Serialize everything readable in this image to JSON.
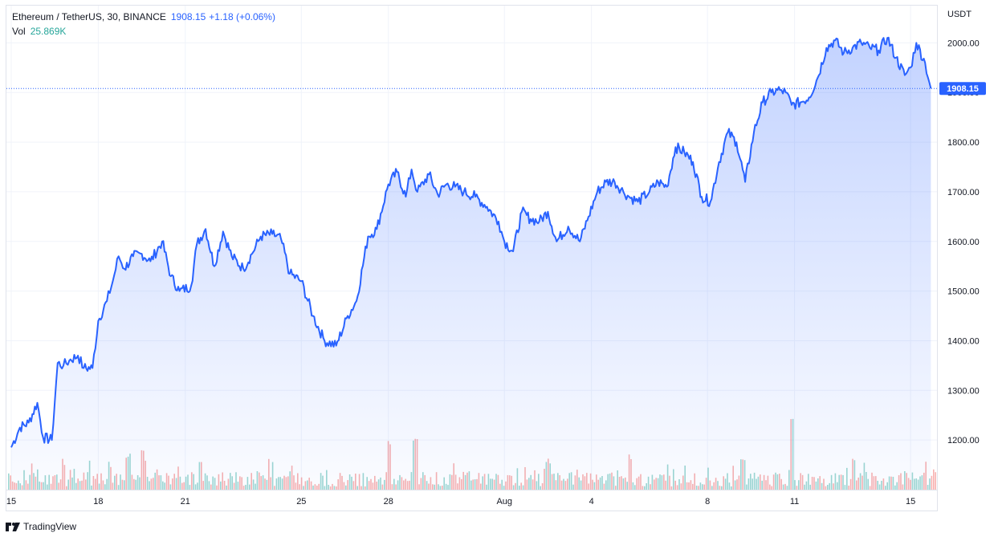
{
  "legend": {
    "symbol": "Ethereum / TetherUS, 30, BINANCE",
    "price": "1908.15",
    "change": "+1.18 (+0.06%)",
    "vol_label": "Vol",
    "vol_value": "25.869K"
  },
  "currency": "USDT",
  "footer": {
    "brand": "TradingView",
    "logo_icon": "tradingview-logo-icon"
  },
  "colors": {
    "line": "#2962ff",
    "area_top": "#2962ff",
    "grid": "#f0f3fa",
    "vol_up": "#26a69a",
    "vol_down": "#ef5350",
    "price_label_bg": "#2962ff"
  },
  "chart_data": {
    "type": "area",
    "grid": true,
    "ylim": [
      1100,
      2075
    ],
    "yticks": [
      1200,
      1300,
      1400,
      1500,
      1600,
      1700,
      1800,
      1900,
      2000
    ],
    "ytick_labels": [
      "1200.00",
      "1300.00",
      "1400.00",
      "1500.00",
      "1600.00",
      "1700.00",
      "1800.00",
      "1900.00",
      "2000.00"
    ],
    "current_price": 1908.15,
    "current_price_label": "1908.15",
    "x_range": [
      0,
      31.8
    ],
    "xticks": [
      {
        "day": 0,
        "label": "15"
      },
      {
        "day": 3,
        "label": "18"
      },
      {
        "day": 6,
        "label": "21"
      },
      {
        "day": 10,
        "label": "25"
      },
      {
        "day": 13,
        "label": "28"
      },
      {
        "day": 17,
        "label": "Aug"
      },
      {
        "day": 20,
        "label": "4"
      },
      {
        "day": 24,
        "label": "8"
      },
      {
        "day": 27,
        "label": "11"
      },
      {
        "day": 31,
        "label": "15"
      }
    ],
    "series": [
      {
        "x": [
          0,
          0.3,
          0.6,
          0.9,
          1.1,
          1.4,
          1.6,
          1.8,
          2.0,
          2.3,
          2.5,
          2.8,
          3.0,
          3.3,
          3.5,
          3.7,
          3.9,
          4.2,
          4.5,
          4.8,
          5.2,
          5.5,
          5.8,
          6.2,
          6.4,
          6.7,
          7.0,
          7.3,
          7.6,
          8.0,
          8.3,
          8.6,
          9.0,
          9.3,
          9.6,
          10.0,
          10.4,
          10.8,
          11.2,
          11.6,
          11.9,
          12.3,
          12.6,
          13.0,
          13.3,
          13.6,
          13.8,
          14.0,
          14.4,
          14.7,
          15.0,
          15.3,
          15.6,
          16.0,
          16.4,
          16.8,
          17.0,
          17.3,
          17.6,
          17.9,
          18.2,
          18.5,
          18.8,
          19.2,
          19.6,
          19.9,
          20.2,
          20.5,
          20.8,
          21.1,
          21.3,
          21.6,
          22.0,
          22.3,
          22.6,
          22.9,
          23.2,
          23.5,
          23.8,
          24.1,
          24.4,
          24.7,
          25.0,
          25.3,
          25.6,
          25.9,
          26.2,
          26.5,
          26.7,
          26.9,
          27.2,
          27.5,
          27.8,
          28.1,
          28.4,
          28.7,
          29.0,
          29.3,
          29.6,
          29.9,
          30.2,
          30.5,
          30.8,
          31.0,
          31.2,
          31.5,
          31.7
        ],
        "y": [
          1185,
          1225,
          1235,
          1275,
          1205,
          1200,
          1355,
          1350,
          1360,
          1370,
          1345,
          1345,
          1440,
          1480,
          1520,
          1570,
          1545,
          1570,
          1575,
          1560,
          1600,
          1530,
          1500,
          1510,
          1595,
          1625,
          1550,
          1620,
          1570,
          1545,
          1575,
          1610,
          1615,
          1605,
          1535,
          1520,
          1450,
          1400,
          1390,
          1450,
          1480,
          1610,
          1625,
          1715,
          1740,
          1690,
          1745,
          1700,
          1735,
          1695,
          1715,
          1710,
          1700,
          1690,
          1670,
          1640,
          1600,
          1580,
          1660,
          1645,
          1640,
          1660,
          1600,
          1630,
          1600,
          1650,
          1700,
          1720,
          1720,
          1700,
          1690,
          1680,
          1700,
          1720,
          1710,
          1790,
          1780,
          1760,
          1690,
          1680,
          1760,
          1820,
          1800,
          1720,
          1820,
          1880,
          1900,
          1905,
          1900,
          1875,
          1880,
          1890,
          1930,
          1990,
          2005,
          1980,
          1990,
          2000,
          1990,
          1985,
          2010,
          1970,
          1935,
          1950,
          2000,
          1960,
          1908.15
        ]
      }
    ],
    "volume_profile": [
      {
        "x": 1.8,
        "v": 0.6
      },
      {
        "x": 4.0,
        "v": 0.75
      },
      {
        "x": 4.5,
        "v": 1.0
      },
      {
        "x": 6.5,
        "v": 0.55
      },
      {
        "x": 13.0,
        "v": 1.15
      },
      {
        "x": 13.9,
        "v": 1.2
      },
      {
        "x": 18.5,
        "v": 0.65
      },
      {
        "x": 21.3,
        "v": 0.7
      },
      {
        "x": 25.2,
        "v": 0.6
      },
      {
        "x": 26.9,
        "v": 1.65
      },
      {
        "x": 29.0,
        "v": 0.65
      },
      {
        "x": 31.8,
        "v": 0.4
      }
    ]
  }
}
